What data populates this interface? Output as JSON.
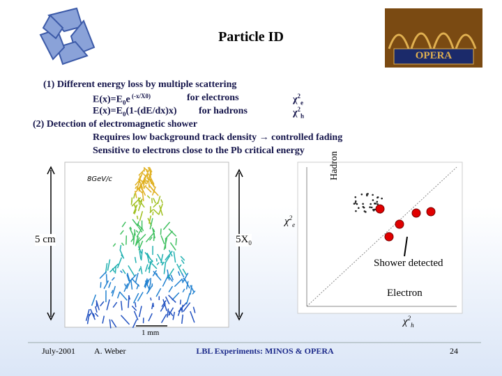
{
  "header": {
    "title": "Particle ID",
    "logo_text": "OPERA"
  },
  "body": {
    "item1": "(1) Different energy loss by multiple scattering",
    "electron_formula": [
      "E(x)=E",
      "0",
      "e",
      " (-x/X0)"
    ],
    "electron_note": "for electrons",
    "electron_chi": [
      "χ",
      "2",
      "e"
    ],
    "hadron_formula": [
      "E(x)=E",
      "0",
      "(1-(dE/dx)x)"
    ],
    "hadron_note": "for hadrons",
    "hadron_chi": [
      "χ",
      "2",
      "h"
    ],
    "item2": "(2) Detection of electromagnetic shower",
    "item2_line1": "Requires low background track density → controlled fading",
    "item2_line2": "Sensitive to electrons close to the Pb critical energy"
  },
  "shower_figure": {
    "energy_label": "8GeV/c",
    "height_label": "5 cm",
    "depth_label": [
      "5X",
      "0"
    ],
    "scale_label": "1 mm"
  },
  "scatter_figure": {
    "y_label": "Hadron",
    "x_chi": [
      "χ",
      "2",
      "e"
    ],
    "shower_note": "Shower detected",
    "electron_note": "Electron",
    "h_chi": [
      "χ",
      "2",
      "h"
    ]
  },
  "footer": {
    "date": "July-2001",
    "author": "A. Weber",
    "talk": "LBL Experiments: MINOS & OPERA",
    "page": "24"
  }
}
